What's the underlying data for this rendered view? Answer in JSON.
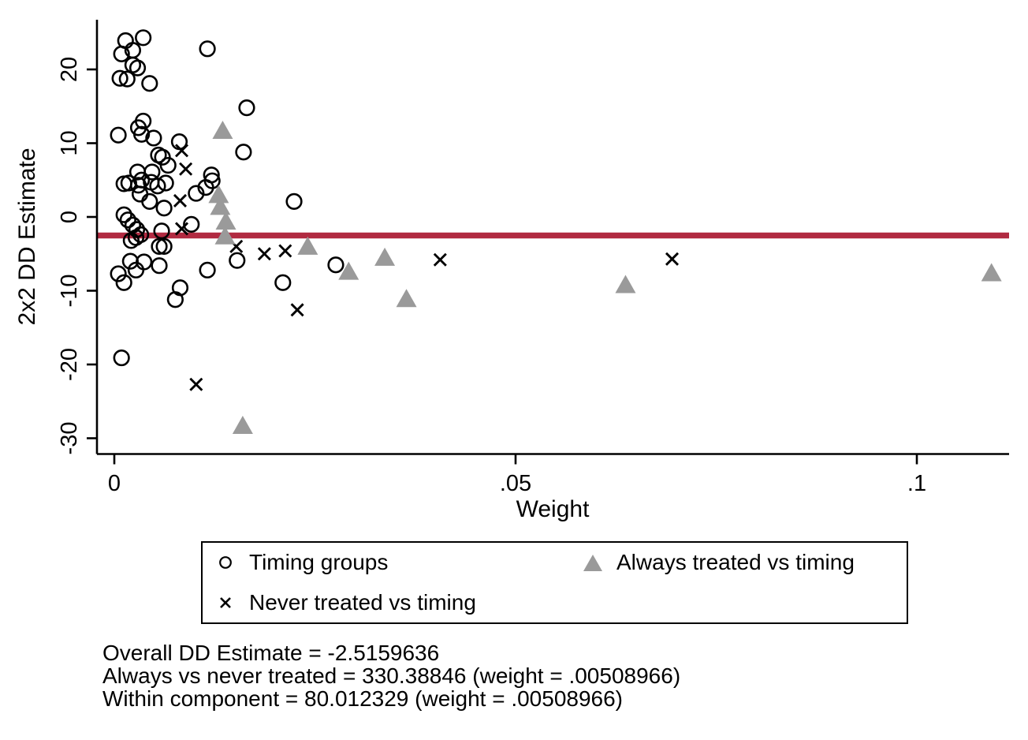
{
  "figure": {
    "background": "#ffffff",
    "text_color": "#000000"
  },
  "chart_data": {
    "type": "scatter",
    "title": "",
    "xlabel": "Weight",
    "ylabel": "2x2 DD Estimate",
    "xlim": [
      -0.0022,
      0.1117
    ],
    "ylim": [
      -32.1,
      26.7
    ],
    "grid": false,
    "x_ticks": [
      {
        "value": 0,
        "label": "0"
      },
      {
        "value": 0.05,
        "label": ".05"
      },
      {
        "value": 0.1,
        "label": ".1"
      }
    ],
    "y_ticks": [
      {
        "value": 20,
        "label": "20"
      },
      {
        "value": 10,
        "label": "10"
      },
      {
        "value": 0,
        "label": "0"
      },
      {
        "value": -10,
        "label": "-10"
      },
      {
        "value": -20,
        "label": "-20"
      },
      {
        "value": -30,
        "label": "-30"
      }
    ],
    "reference_line": {
      "value": -2.5159636,
      "color": "#b12a41",
      "label": "Overall DD Estimate"
    },
    "series": [
      {
        "name": "Timing groups",
        "marker": "circle",
        "color": "#000000",
        "points": [
          [
            0.0036,
            24.3
          ],
          [
            0.0014,
            23.9
          ],
          [
            0.0009,
            22.1
          ],
          [
            0.0023,
            22.6
          ],
          [
            0.0023,
            20.6
          ],
          [
            0.0029,
            20.2
          ],
          [
            0.0007,
            18.8
          ],
          [
            0.0016,
            18.7
          ],
          [
            0.0044,
            18.1
          ],
          [
            0.0116,
            22.8
          ],
          [
            0.0165,
            14.8
          ],
          [
            0.0005,
            11.1
          ],
          [
            0.0036,
            13.0
          ],
          [
            0.003,
            12.1
          ],
          [
            0.0034,
            11.2
          ],
          [
            0.0049,
            10.7
          ],
          [
            0.0081,
            10.2
          ],
          [
            0.0055,
            8.4
          ],
          [
            0.006,
            8.1
          ],
          [
            0.0067,
            7.0
          ],
          [
            0.0161,
            8.8
          ],
          [
            0.0029,
            6.1
          ],
          [
            0.0047,
            6.1
          ],
          [
            0.0121,
            5.7
          ],
          [
            0.0122,
            4.9
          ],
          [
            0.0012,
            4.5
          ],
          [
            0.0018,
            4.6
          ],
          [
            0.0034,
            5.0
          ],
          [
            0.003,
            4.3
          ],
          [
            0.0046,
            4.7
          ],
          [
            0.0054,
            4.2
          ],
          [
            0.0064,
            4.6
          ],
          [
            0.0032,
            3.1
          ],
          [
            0.0044,
            2.1
          ],
          [
            0.0062,
            1.2
          ],
          [
            0.0102,
            3.2
          ],
          [
            0.0114,
            4.0
          ],
          [
            0.0224,
            2.1
          ],
          [
            0.0096,
            -1.0
          ],
          [
            0.0059,
            -1.9
          ],
          [
            0.0012,
            0.3
          ],
          [
            0.0017,
            -0.4
          ],
          [
            0.0023,
            -1.1
          ],
          [
            0.0028,
            -1.7
          ],
          [
            0.0033,
            -2.4
          ],
          [
            0.0027,
            -2.8
          ],
          [
            0.0021,
            -3.2
          ],
          [
            0.0056,
            -4.0
          ],
          [
            0.0062,
            -4.0
          ],
          [
            0.0153,
            -5.9
          ],
          [
            0.002,
            -6.0
          ],
          [
            0.0037,
            -6.1
          ],
          [
            0.0027,
            -7.2
          ],
          [
            0.0056,
            -6.6
          ],
          [
            0.0005,
            -7.7
          ],
          [
            0.0012,
            -8.9
          ],
          [
            0.0116,
            -7.2
          ],
          [
            0.0082,
            -9.6
          ],
          [
            0.0076,
            -11.2
          ],
          [
            0.021,
            -8.9
          ],
          [
            0.0276,
            -6.5
          ],
          [
            0.0009,
            -19.1
          ]
        ]
      },
      {
        "name": "Never treated vs timing",
        "marker": "x",
        "color": "#000000",
        "points": [
          [
            0.0084,
            9.0
          ],
          [
            0.0089,
            6.5
          ],
          [
            0.0082,
            2.2
          ],
          [
            0.0084,
            -1.6
          ],
          [
            0.0152,
            -4.0
          ],
          [
            0.0187,
            -5.0
          ],
          [
            0.0213,
            -4.6
          ],
          [
            0.0228,
            -12.6
          ],
          [
            0.0406,
            -5.8
          ],
          [
            0.0695,
            -5.7
          ],
          [
            0.0102,
            -22.7
          ]
        ]
      },
      {
        "name": "Always treated vs timing",
        "marker": "triangle",
        "color": "#9a9a9a",
        "points": [
          [
            0.0135,
            11.6
          ],
          [
            0.013,
            2.9
          ],
          [
            0.0132,
            1.3
          ],
          [
            0.0139,
            -0.7
          ],
          [
            0.0138,
            -2.7
          ],
          [
            0.0241,
            -4.1
          ],
          [
            0.0292,
            -7.5
          ],
          [
            0.0337,
            -5.6
          ],
          [
            0.0364,
            -11.2
          ],
          [
            0.0637,
            -9.3
          ],
          [
            0.1093,
            -7.7
          ],
          [
            0.016,
            -28.4
          ]
        ]
      }
    ],
    "legend": {
      "position": "below",
      "items": [
        {
          "marker": "circle",
          "label": "Timing groups"
        },
        {
          "marker": "triangle",
          "label": "Always treated vs timing"
        },
        {
          "marker": "x",
          "label": "Never treated vs timing"
        }
      ]
    }
  },
  "annotations": {
    "lines": [
      "Overall DD Estimate = -2.5159636",
      "Always vs never treated = 330.38846 (weight = .00508966)",
      "Within component = 80.012329 (weight = .00508966)"
    ]
  }
}
